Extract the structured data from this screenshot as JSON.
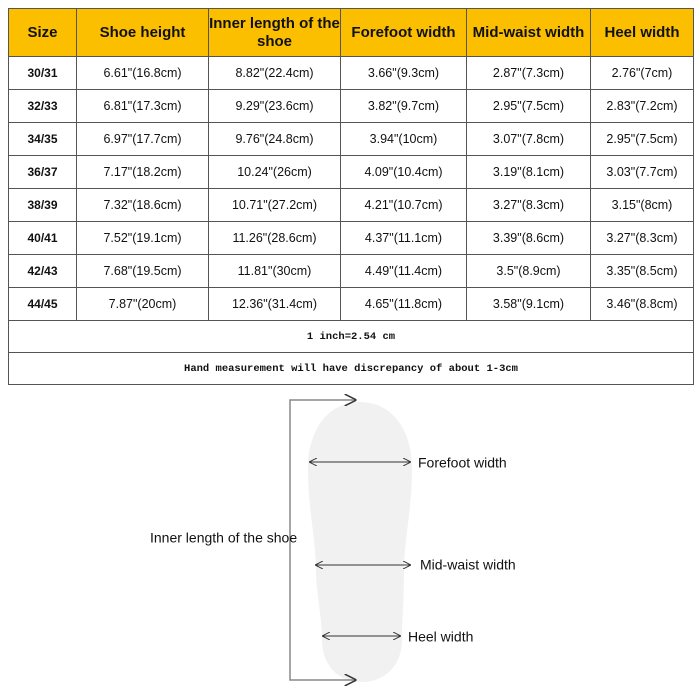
{
  "table": {
    "header": [
      "Size",
      "Shoe height",
      "Inner length of the shoe",
      "Forefoot width",
      "Mid-waist width",
      "Heel width"
    ],
    "rows": [
      [
        "30/31",
        "6.61\"(16.8cm)",
        "8.82\"(22.4cm)",
        "3.66\"(9.3cm)",
        "2.87\"(7.3cm)",
        "2.76\"(7cm)"
      ],
      [
        "32/33",
        "6.81\"(17.3cm)",
        "9.29\"(23.6cm)",
        "3.82\"(9.7cm)",
        "2.95\"(7.5cm)",
        "2.83\"(7.2cm)"
      ],
      [
        "34/35",
        "6.97\"(17.7cm)",
        "9.76\"(24.8cm)",
        "3.94\"(10cm)",
        "3.07\"(7.8cm)",
        "2.95\"(7.5cm)"
      ],
      [
        "36/37",
        "7.17\"(18.2cm)",
        "10.24\"(26cm)",
        "4.09\"(10.4cm)",
        "3.19\"(8.1cm)",
        "3.03\"(7.7cm)"
      ],
      [
        "38/39",
        "7.32\"(18.6cm)",
        "10.71\"(27.2cm)",
        "4.21\"(10.7cm)",
        "3.27\"(8.3cm)",
        "3.15\"(8cm)"
      ],
      [
        "40/41",
        "7.52\"(19.1cm)",
        "11.26\"(28.6cm)",
        "4.37\"(11.1cm)",
        "3.39\"(8.6cm)",
        "3.27\"(8.3cm)"
      ],
      [
        "42/43",
        "7.68\"(19.5cm)",
        "11.81\"(30cm)",
        "4.49\"(11.4cm)",
        "3.5\"(8.9cm)",
        "3.35\"(8.5cm)"
      ],
      [
        "44/45",
        "7.87\"(20cm)",
        "12.36\"(31.4cm)",
        "4.65\"(11.8cm)",
        "3.58\"(9.1cm)",
        "3.46\"(8.8cm)"
      ]
    ],
    "notes": [
      "1 inch=2.54 cm",
      "Hand measurement will have discrepancy of about 1-3cm"
    ]
  },
  "diagram": {
    "labels": {
      "length": "Inner length of the shoe",
      "forefoot": "Forefoot width",
      "waist": "Mid-waist width",
      "heel": "Heel width"
    }
  }
}
